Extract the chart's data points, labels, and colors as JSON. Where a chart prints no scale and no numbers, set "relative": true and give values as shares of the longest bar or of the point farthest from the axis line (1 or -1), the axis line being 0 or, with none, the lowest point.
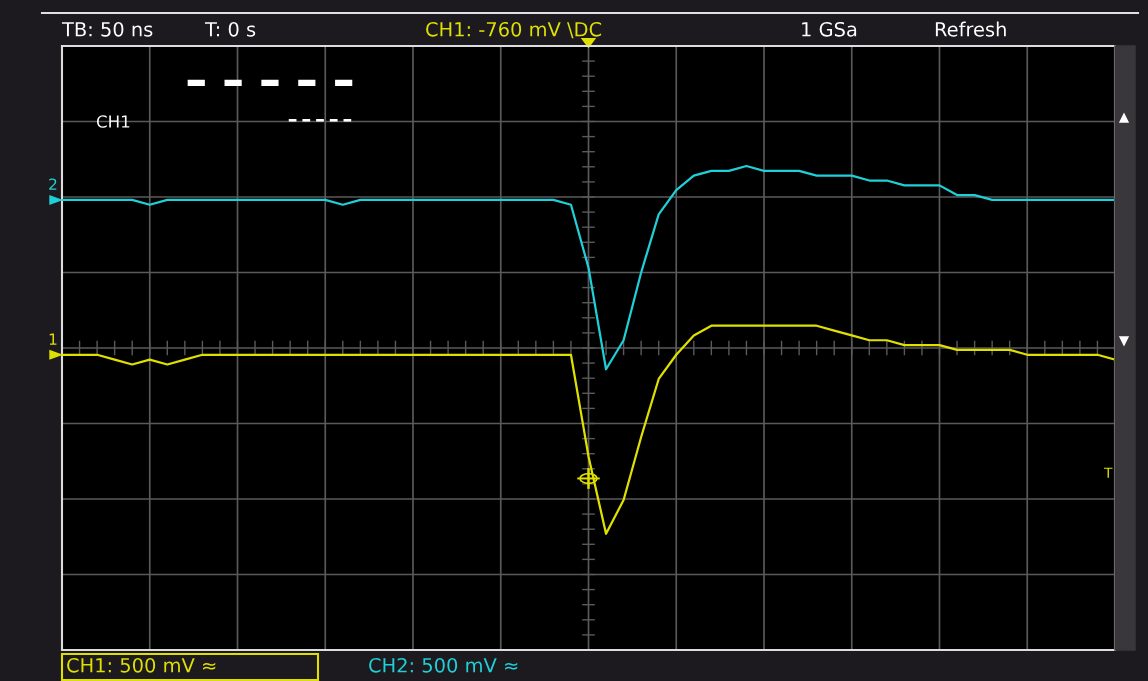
{
  "chart_data": {
    "type": "line",
    "relative": true,
    "grid": true,
    "marker": "none",
    "line_style": "solid",
    "categories": [
      null,
      null,
      null,
      null,
      null,
      null,
      null,
      null,
      null,
      null,
      null,
      null,
      null,
      null,
      null,
      null,
      null,
      null,
      null,
      null,
      null,
      null,
      null,
      null,
      null,
      null,
      null,
      null,
      null,
      null,
      null,
      null,
      null,
      null,
      null,
      null,
      null,
      null,
      null,
      null,
      null,
      null,
      null,
      null,
      null,
      null,
      null,
      null,
      null,
      null,
      null,
      null,
      null,
      null,
      null,
      null,
      null,
      null,
      null,
      null,
      null
    ],
    "series": [
      {
        "color": "#e0e000",
        "values": [
          0.61,
          0.61,
          0.61,
          0.6,
          0.59,
          0.6,
          0.59,
          0.6,
          0.61,
          0.61,
          0.61,
          0.61,
          0.61,
          0.61,
          0.61,
          0.61,
          0.61,
          0.61,
          0.61,
          0.61,
          0.61,
          0.61,
          0.61,
          0.61,
          0.61,
          0.61,
          0.61,
          0.61,
          0.61,
          0.61,
          0.4,
          0.24,
          0.31,
          0.44,
          0.56,
          0.61,
          0.65,
          0.67,
          0.67,
          0.67,
          0.67,
          0.67,
          0.67,
          0.67,
          0.66,
          0.65,
          0.64,
          0.64,
          0.63,
          0.63,
          0.63,
          0.62,
          0.62,
          0.62,
          0.62,
          0.61,
          0.61,
          0.61,
          0.61,
          0.61,
          0.6
        ]
      },
      {
        "color": "#20d0d8",
        "values": [
          0.93,
          0.93,
          0.93,
          0.93,
          0.93,
          0.92,
          0.93,
          0.93,
          0.93,
          0.93,
          0.93,
          0.93,
          0.93,
          0.93,
          0.93,
          0.93,
          0.92,
          0.93,
          0.93,
          0.93,
          0.93,
          0.93,
          0.93,
          0.93,
          0.93,
          0.93,
          0.93,
          0.93,
          0.93,
          0.92,
          0.79,
          0.58,
          0.64,
          0.78,
          0.9,
          0.95,
          0.98,
          0.99,
          0.99,
          1,
          0.99,
          0.99,
          0.99,
          0.98,
          0.98,
          0.98,
          0.97,
          0.97,
          0.96,
          0.96,
          0.96,
          0.94,
          0.94,
          0.93,
          0.93,
          0.93,
          0.93,
          0.93,
          0.93,
          0.93,
          0.93
        ]
      }
    ],
    "annotations": [
      "TB: 50 ns",
      "T: 0 s",
      "CH1: -760 mV \\DC",
      "1 GSa",
      "Refresh",
      "CH1",
      "1",
      "2",
      "T",
      "CH1: 500 mV ≈",
      "CH2: 500 mV ≈"
    ]
  }
}
